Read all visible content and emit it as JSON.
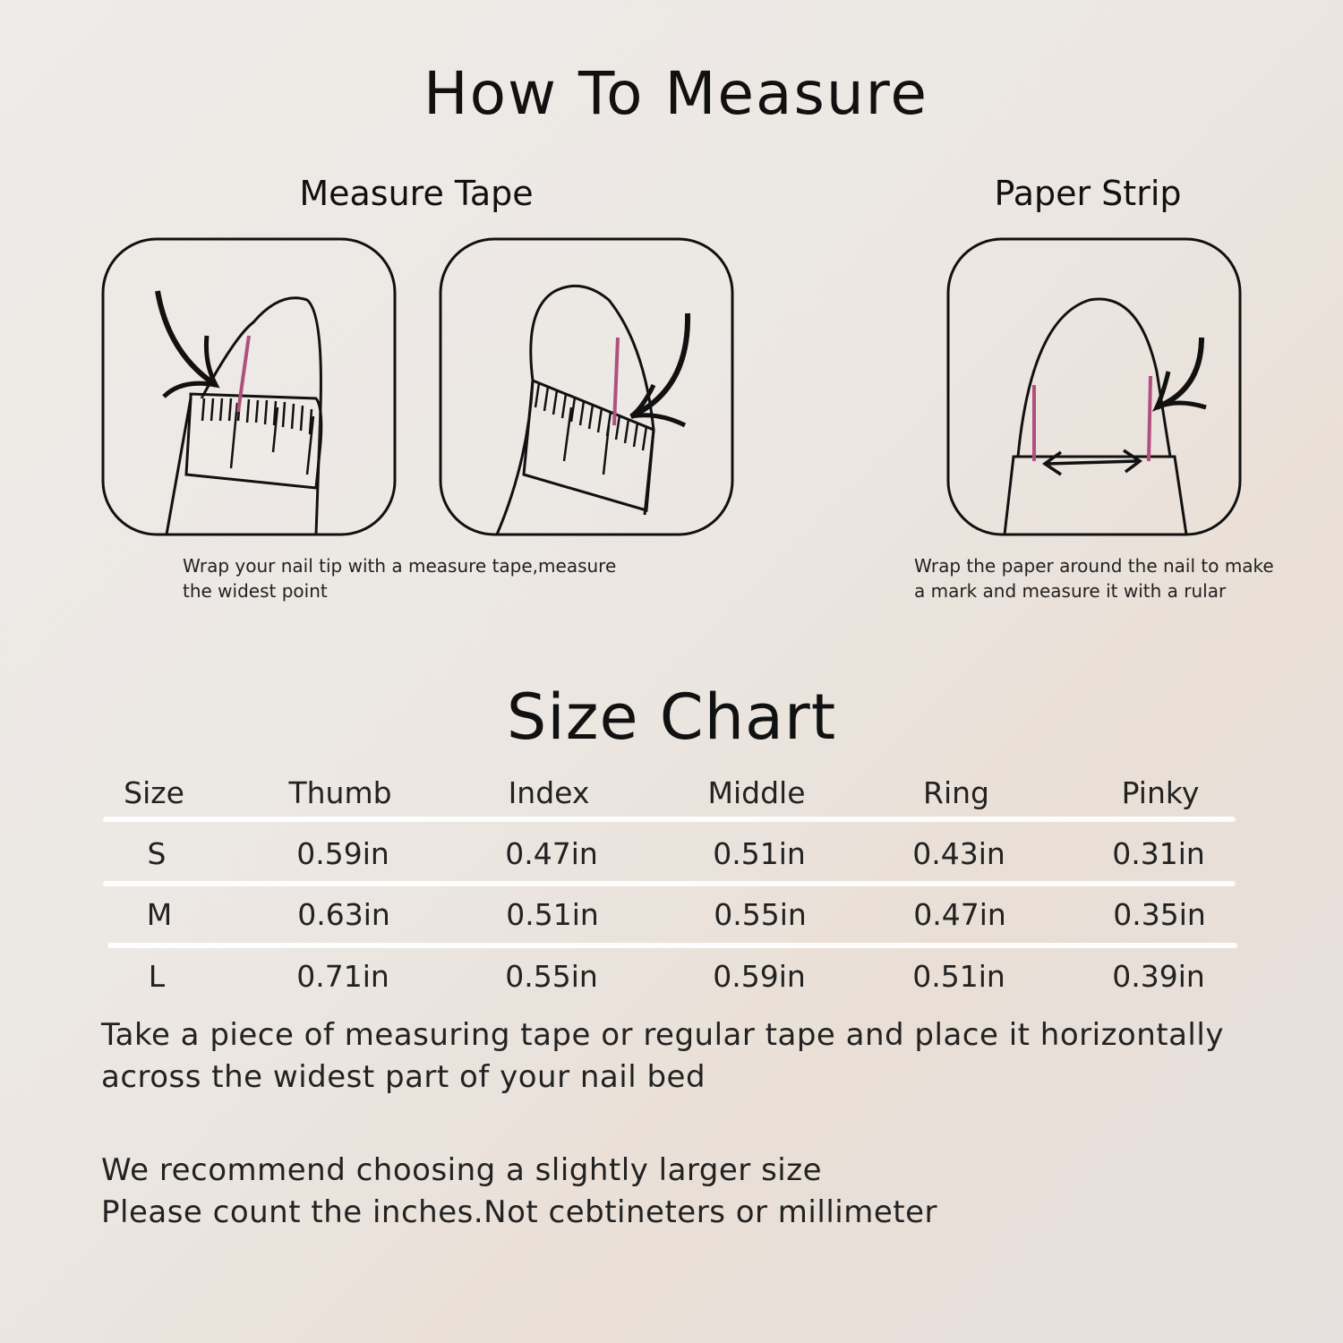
{
  "header": {
    "title": "How To Measure"
  },
  "methods": [
    {
      "title": "Measure Tape",
      "caption_lines": [
        "Wrap your nail tip with a measure tape,measure",
        "the widest point"
      ]
    },
    {
      "title": "Paper Strip",
      "caption_lines": [
        "Wrap the paper around the nail to make",
        "a mark and measure it with a rular"
      ]
    }
  ],
  "size_chart": {
    "title": "Size Chart",
    "columns": [
      "Size",
      "Thumb",
      "Index",
      "Middle",
      "Ring",
      "Pinky"
    ],
    "rows": [
      [
        "S",
        "0.59in",
        "0.47in",
        "0.51in",
        "0.43in",
        "0.31in"
      ],
      [
        "M",
        "0.63in",
        "0.51in",
        "0.55in",
        "0.47in",
        "0.35in"
      ],
      [
        "L",
        "0.71in",
        "0.55in",
        "0.59in",
        "0.51in",
        "0.39in"
      ]
    ]
  },
  "notes": {
    "instruction_lines": [
      "Take a piece of measuring tape or regular tape and place it horizontally",
      "across the widest part of your nail bed"
    ],
    "recommend_lines": [
      "We recommend choosing a slightly larger size",
      "Please count the inches.Not cebtineters or millimeter"
    ]
  },
  "colors": {
    "mark": "#b0507e",
    "line": "#111111",
    "separator": "#ffffff"
  }
}
